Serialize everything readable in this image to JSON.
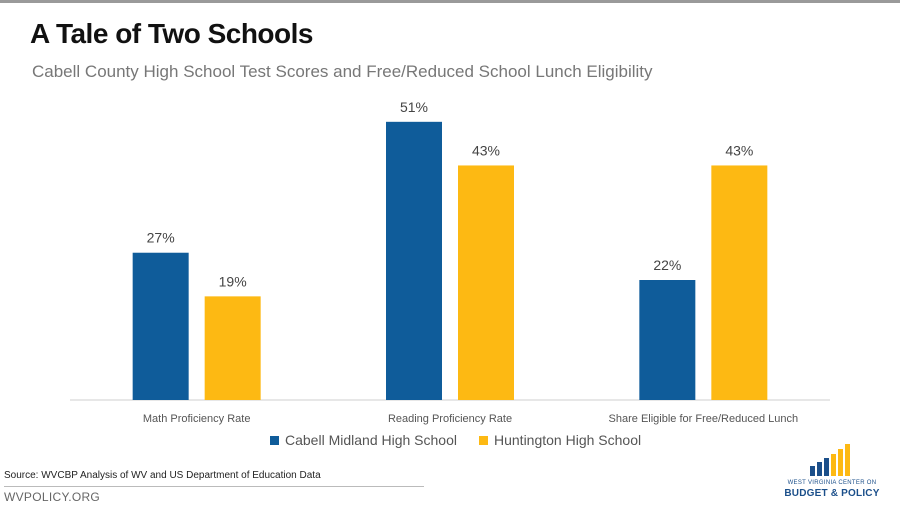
{
  "header": {
    "title": "A Tale of Two Schools",
    "subtitle": "Cabell County High School Test Scores and Free/Reduced School Lunch Eligibility"
  },
  "chart_data": {
    "type": "bar",
    "categories": [
      "Math Proficiency Rate",
      "Reading Proficiency Rate",
      "Share Eligible for Free/Reduced Lunch"
    ],
    "series": [
      {
        "name": "Cabell Midland High School",
        "values": [
          27,
          51,
          22
        ],
        "color": "#0f5c9a"
      },
      {
        "name": "Huntington High School",
        "values": [
          19,
          43,
          43
        ],
        "color": "#fdb913"
      }
    ],
    "value_suffix": "%",
    "ylim": [
      0,
      55
    ],
    "grid": false,
    "legend": "bottom"
  },
  "footer": {
    "source": "Source: WVCBP Analysis of WV and US Department of Education Data",
    "site": "WVPOLICY.ORG"
  },
  "logo": {
    "line1": "WEST VIRGINIA CENTER ON",
    "line2": "BUDGET & POLICY",
    "bar_color": "#fdb913",
    "text_color": "#1b4f8a"
  }
}
